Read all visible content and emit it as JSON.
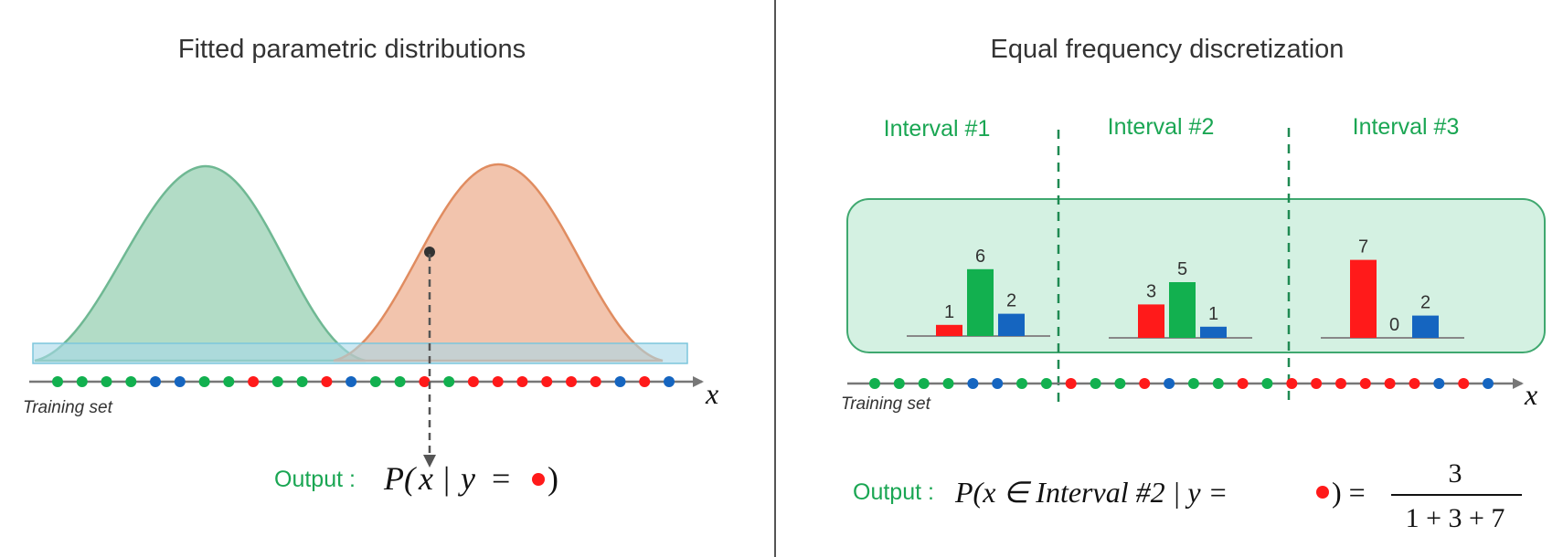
{
  "left_panel": {
    "title": "Fitted parametric distributions",
    "axis_label": "x",
    "training_label": "Training set",
    "output_label": "Output :",
    "output_formula": {
      "p": "P(",
      "x": "x",
      "bar": "|",
      "y": "y",
      "eq": "=",
      "close": ")"
    }
  },
  "right_panel": {
    "title": "Equal frequency discretization",
    "axis_label": "x",
    "training_label": "Training set",
    "intervals": [
      {
        "label": "Interval #1",
        "bars": [
          {
            "color": "red",
            "value": 1
          },
          {
            "color": "green",
            "value": 6
          },
          {
            "color": "blue",
            "value": 2
          }
        ]
      },
      {
        "label": "Interval #2",
        "bars": [
          {
            "color": "red",
            "value": 3
          },
          {
            "color": "green",
            "value": 5
          },
          {
            "color": "blue",
            "value": 1
          }
        ]
      },
      {
        "label": "Interval #3",
        "bars": [
          {
            "color": "red",
            "value": 7
          },
          {
            "color": "green",
            "value": 0
          },
          {
            "color": "blue",
            "value": 2
          }
        ]
      }
    ],
    "output_label": "Output :",
    "output_formula": {
      "lhs": "P(x ∈  Interval #2 | y =",
      "eq": ") =",
      "numerator": "3",
      "denominator": "1 + 3 + 7"
    }
  },
  "colors": {
    "red": "#ff1a1a",
    "green": "#12b04f",
    "blue": "#1565c0",
    "green_curve": "#7fc4a0",
    "orange_curve": "#e8946a"
  },
  "dots_left": [
    "green",
    "green",
    "green",
    "green",
    "blue",
    "blue",
    "green",
    "green",
    "red",
    "green",
    "green",
    "red",
    "blue",
    "green",
    "green",
    "red",
    "green",
    "red",
    "red",
    "red",
    "red",
    "red",
    "red",
    "blue",
    "red",
    "blue"
  ],
  "dots_right": [
    "green",
    "green",
    "green",
    "green",
    "blue",
    "blue",
    "green",
    "green",
    "red",
    "green",
    "green",
    "red",
    "blue",
    "green",
    "green",
    "red",
    "green",
    "red",
    "red",
    "red",
    "red",
    "red",
    "red",
    "blue",
    "red",
    "blue"
  ]
}
